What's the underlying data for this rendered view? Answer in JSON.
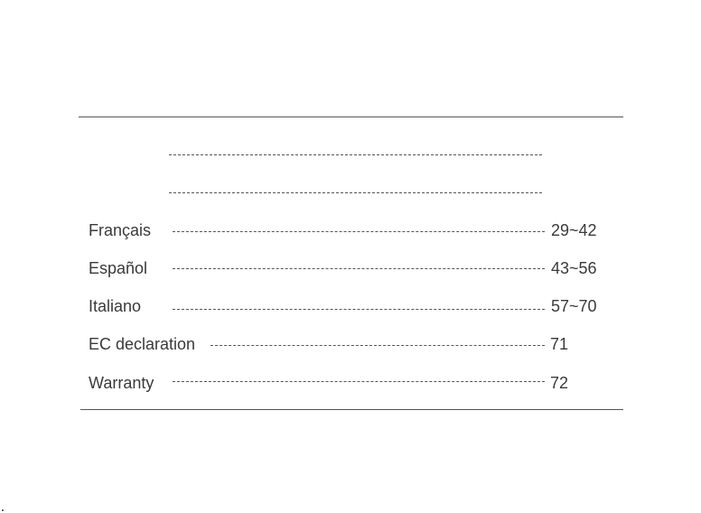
{
  "toc": {
    "rows": [
      {
        "label": "",
        "page": ""
      },
      {
        "label": "",
        "page": ""
      },
      {
        "label": "Français",
        "page": "29~42"
      },
      {
        "label": "Español",
        "page": "43~56"
      },
      {
        "label": "Italiano",
        "page": "57~70"
      },
      {
        "label": "EC declaration",
        "page": "71"
      },
      {
        "label": "Warranty",
        "page": "72"
      }
    ]
  }
}
